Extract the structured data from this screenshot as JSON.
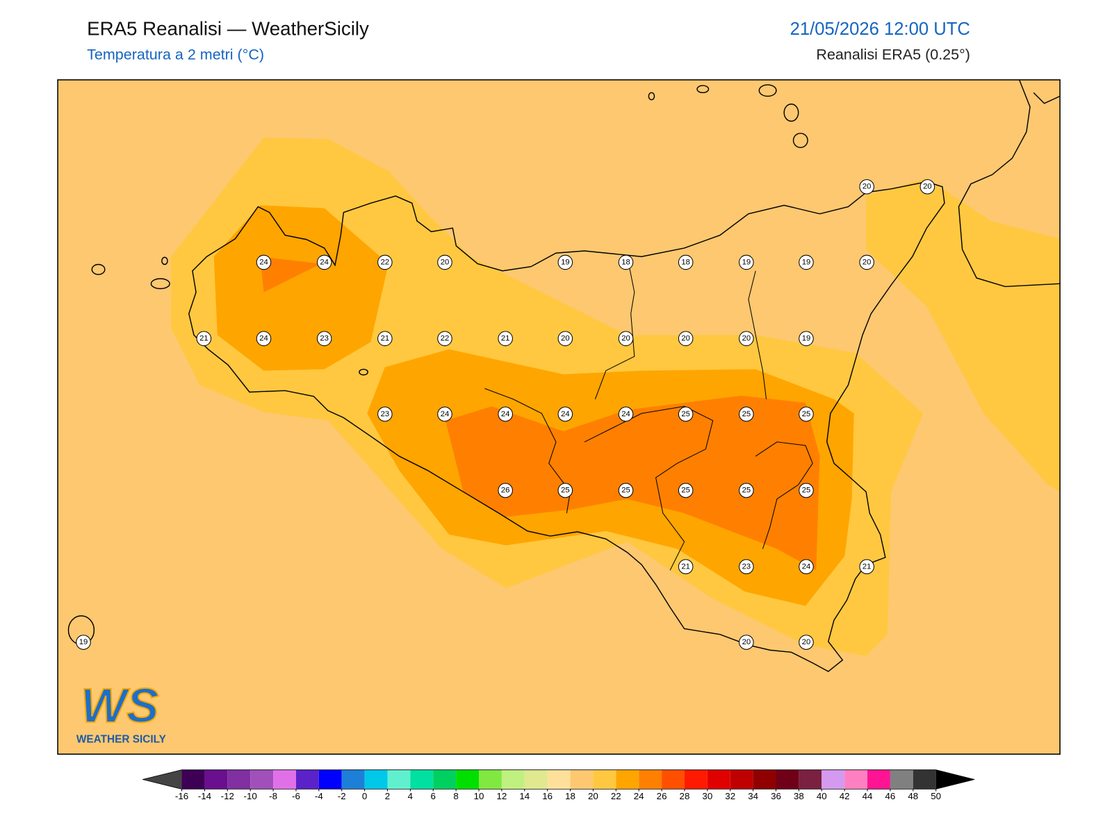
{
  "header": {
    "title": "ERA5 Reanalisi — WeatherSicily",
    "subtitle": "Temperatura a 2 metri (°C)",
    "datetime": "21/05/2026 12:00 UTC",
    "source": "Reanalisi ERA5 (0.25°)"
  },
  "station_values": [
    20,
    20,
    24,
    24,
    22,
    20,
    19,
    18,
    18,
    19,
    19,
    20,
    21,
    24,
    23,
    21,
    22,
    21,
    20,
    20,
    20,
    20,
    19,
    23,
    24,
    24,
    24,
    24,
    25,
    25,
    25,
    26,
    25,
    25,
    25,
    25,
    25,
    21,
    23,
    24,
    21,
    19,
    20,
    20
  ],
  "logo": {
    "mark": "WS",
    "text": "WEATHER SICILY"
  },
  "colorbar": {
    "ticks": [
      -16,
      -14,
      -12,
      -10,
      -8,
      -6,
      -4,
      -2,
      0,
      2,
      4,
      6,
      8,
      10,
      12,
      14,
      16,
      18,
      20,
      22,
      24,
      26,
      28,
      30,
      32,
      34,
      36,
      38,
      40,
      42,
      44,
      46,
      48,
      50
    ],
    "colors": [
      "#3d0055",
      "#6a0f8e",
      "#8030a0",
      "#a050b8",
      "#e070e8",
      "#5a22c8",
      "#0000ff",
      "#1e7fd8",
      "#00c8e8",
      "#60f0d0",
      "#00e0a0",
      "#00d060",
      "#00e000",
      "#80e840",
      "#c0f080",
      "#e0e890",
      "#ffe09a",
      "#fdc870",
      "#ffc840",
      "#ffa500",
      "#ff8000",
      "#ff5000",
      "#ff1a00",
      "#e00000",
      "#c00000",
      "#900000",
      "#700018",
      "#7a2040",
      "#d49af0",
      "#ff80c0",
      "#ff1493",
      "#808080",
      "#333333"
    ],
    "under_color": "#444444",
    "over_color": "#000000"
  }
}
